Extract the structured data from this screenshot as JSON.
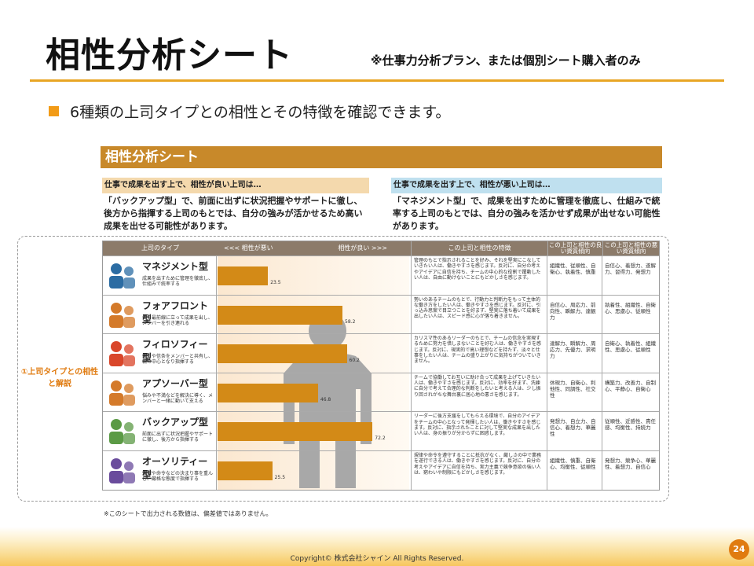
{
  "slide": {
    "title": "相性分析シート",
    "note": "※仕事力分析プラン、または個別シート購入者のみ",
    "bullet": "6種類の上司タイプとの相性とその特徴を確認できます。",
    "callout": "①上司タイプとの相性と解説",
    "copyright": "Copyright© 株式会社シャイン All Rights Reserved.",
    "page_number": "24",
    "colors": {
      "accent": "#e8a524",
      "bullet": "#f29b17",
      "bar": "#d38a17",
      "callout": "#e07b10"
    }
  },
  "sheet": {
    "header": "相性分析シート",
    "good_heading": "仕事で成果を出す上で、相性が良い上司は…",
    "good_text": "「バックアップ型」で、前面に出ずに状況把握やサポートに徹し、後方から指揮する上司のもとでは、自分の強みが活かせるため高い成果を出せる可能性があります。",
    "bad_heading": "仕事で成果を出す上で、相性が悪い上司は…",
    "bad_text": "「マネジメント型」で、成果を出すために管理を徹底し、仕組みで統率する上司のもとでは、自分の強みを活かせず成果が出せない可能性があります。",
    "columns": {
      "type": "上司のタイプ",
      "bad_side": "<<< 相性が悪い",
      "good_side": "相性が良い >>>",
      "features": "この上司と相性の特徴",
      "good_qualities": "この上司と相性の良い資質傾向",
      "bad_qualities": "この上司と相性の悪い資質傾向"
    },
    "footnote": "※このシートで出力される数値は、偏差値ではありません。",
    "rows": [
      {
        "name": "マネジメント型",
        "desc": "成果を出すために管理を徹底し、仕組みで統率する",
        "value_label": "23.5",
        "features": "管理のもとで指示されることを好み、それを堅実にこなしていきたい人は、働きやすさを感じます。反対に、自分の考えやアイデアに自信を持ち、チームの中心的な役割で躍動したい人は、自由に動けないことにもどかしさを感じます。",
        "good_q": "組織性、従順性、自衛心、執着性、慎重",
        "bad_q": "自信心、着想力、遂解力、習得力、発想力"
      },
      {
        "name": "フォアフロント型",
        "desc": "自ら最前線に立って成果を出し、メンバーを引き連れる",
        "value_label": "58.2",
        "features": "勢いのあるチームのもとで、行動力と判断力をもって主体的な働き方をしたい人は、働きやすさを感じます。反対に、引っ込み思案で目立つことを好まず、堅実に落ち着いて成果を出したい人は、スピード感に心が落ち着きません。",
        "good_q": "自信心、周応力、前向性、瞬解力、達観力",
        "bad_q": "執着性、組織性、自衛心、思慮心、従順性"
      },
      {
        "name": "フィロソフィー型",
        "desc": "指針や信条をメンバーと共有し、輪の中心となり指揮する",
        "value_label": "60.2",
        "features": "カリスマ性のあるリーダーのもとで、チームの信念を実現するために努力を惜しまないことを好む人は、働きやすさを感じます。反対に、現実的で高い理想などを持たず、淡々と仕事をしたい人は、チームの盛り上がりに気持ちがついていきません。",
        "good_q": "達解力、瞬解力、周応力、先優力、求明力",
        "bad_q": "自衛心、執着性、組織性、思慮心、従順性"
      },
      {
        "name": "アプソーバー型",
        "desc": "悩みや不満などを解決に導く、メンバーと一緒に動いて支える",
        "value_label": "46.8",
        "features": "チームで協働してお互いに助け合って成果を上げていきたい人は、働きやすさを感じます。反対に、効率を好まず、洗練に自分で考えて合理的な判断をしたいと考える人は、少し振り回されがちな舞台裏に居心地の悪さを感じます。",
        "good_q": "休現力、自衛心、利他性、同調性、社交性",
        "bad_q": "構築力、改善力、自制心、平静心、自衛心"
      },
      {
        "name": "バックアップ型",
        "desc": "前面に出ずに状況把握やサポートに徹し、後方から指揮する",
        "value_label": "72.2",
        "features": "リーダーに後方支援をしてもらえる環境で、自分のアイデアをチームの中心となって発揮したい人は、働きやすさを感じます。反対に、指示されたことに対して堅実な成果を出したい人は、身の振りが分からずに困惑します。",
        "good_q": "発想力、自立力、自信心、着想力、華麗性",
        "bad_q": "従順性、近感性、責任感、均衡性、持続力"
      },
      {
        "name": "オーソリティー型",
        "desc": "規律や命令などの決まり事を重んじ、厳格な態度で指揮する",
        "value_label": "25.5",
        "features": "規律や命令を遵守することに抵抗がなく、厳しさの中で業務を遂行できる人は、働きやすさを感じます。反対に、自分の考えやアイデアに自信を持ち、実力主義で競争意欲の強い人は、窮わいや制限にもどかしさを感じます。",
        "good_q": "組織性、慎重、自衛心、均衡性、従順性",
        "bad_q": "発想力、競争心、華麗性、着想力、自信心"
      }
    ]
  },
  "chart_data": {
    "type": "bar",
    "orientation": "horizontal",
    "categories": [
      "マネジメント型",
      "フォアフロント型",
      "フィロソフィー型",
      "アプソーバー型",
      "バックアップ型",
      "オーソリティー型"
    ],
    "values": [
      23.5,
      58.2,
      60.2,
      46.8,
      72.2,
      25.5
    ],
    "xlim": [
      0,
      100
    ],
    "xlabel_left": "<<< 相性が悪い",
    "xlabel_right": "相性が良い >>>"
  }
}
